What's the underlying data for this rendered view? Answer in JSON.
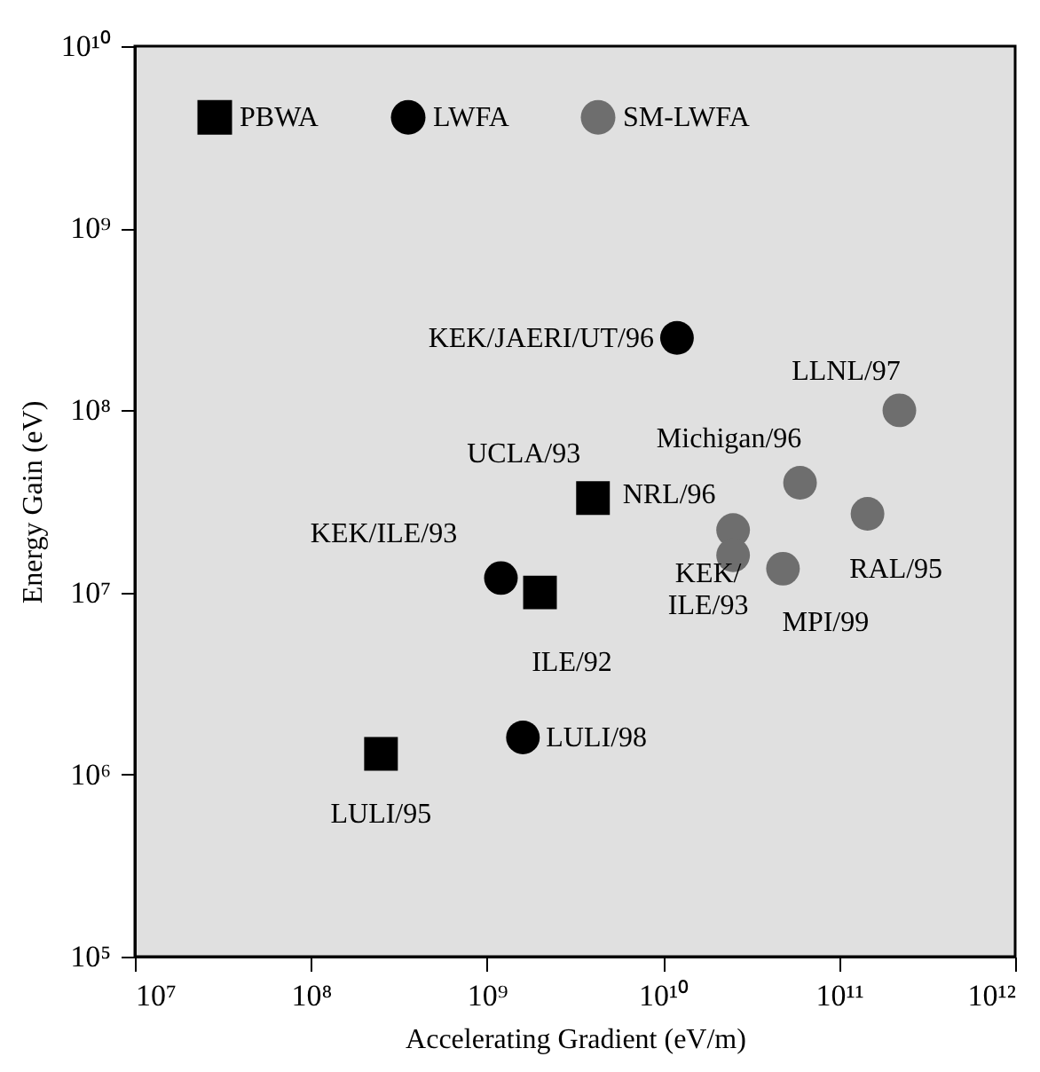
{
  "chart_data": {
    "type": "scatter",
    "xlabel": "Accelerating Gradient (eV/m)",
    "ylabel": "Energy Gain (eV)",
    "log": "xy",
    "grid": false,
    "legend": "top",
    "xlim": [
      10000000.0,
      1000000000000.0
    ],
    "ylim": [
      100000.0,
      10000000000.0
    ],
    "xticks": [
      {
        "value": 10000000.0,
        "label": "10⁷"
      },
      {
        "value": 100000000.0,
        "label": "10⁸"
      },
      {
        "value": 1000000000.0,
        "label": "10⁹"
      },
      {
        "value": 10000000000.0,
        "label": "10¹⁰"
      },
      {
        "value": 100000000000.0,
        "label": "10¹¹"
      },
      {
        "value": 1000000000000.0,
        "label": "10¹²"
      }
    ],
    "yticks": [
      {
        "value": 100000.0,
        "label": "10⁵"
      },
      {
        "value": 1000000.0,
        "label": "10⁶"
      },
      {
        "value": 10000000.0,
        "label": "10⁷"
      },
      {
        "value": 100000000.0,
        "label": "10⁸"
      },
      {
        "value": 1000000000.0,
        "label": "10⁹"
      },
      {
        "value": 10000000000.0,
        "label": "10¹⁰"
      }
    ],
    "series": [
      {
        "name": "PBWA",
        "color": "#000000",
        "marker": "square",
        "x": [
          250000000.0,
          2000000000.0,
          4000000000.0
        ],
        "values": [
          1300000.0,
          10000000.0,
          33000000.0
        ]
      },
      {
        "name": "LWFA",
        "color": "#000000",
        "marker": "circle",
        "x": [
          1200000000.0,
          1600000000.0,
          12000000000.0
        ],
        "values": [
          12000000.0,
          1600000.0,
          250000000.0
        ]
      },
      {
        "name": "SM-LWFA",
        "color": "#6e6e6e",
        "marker": "circle",
        "x": [
          220000000000.0,
          60000000000.0,
          145000000000.0,
          25000000000.0,
          25000000000.0,
          48000000000.0
        ],
        "values": [
          100000000.0,
          40000000.0,
          27000000.0,
          22000000.0,
          16000000.0,
          13500000.0
        ]
      }
    ],
    "annotations": [
      {
        "text": "LULI/95",
        "x": 250000000.0,
        "y": 1300000.0
      },
      {
        "text": "ILE/92",
        "x": 2000000000.0,
        "y": 10000000.0
      },
      {
        "text": "UCLA/93",
        "x": 4000000000.0,
        "y": 33000000.0
      },
      {
        "text": "KEK/ILE/93",
        "x": 1200000000.0,
        "y": 12000000.0
      },
      {
        "text": "LULI/98",
        "x": 1600000000.0,
        "y": 1600000.0
      },
      {
        "text": "KEK/JAERI/UT/96",
        "x": 12000000000.0,
        "y": 250000000.0
      },
      {
        "text": "LLNL/97",
        "x": 220000000000.0,
        "y": 100000000.0
      },
      {
        "text": "Michigan/96",
        "x": 60000000000.0,
        "y": 40000000.0
      },
      {
        "text": "NRL/96",
        "x": 25000000000.0,
        "y": 22000000.0
      },
      {
        "text": "KEK/\nILE/93",
        "x": 25000000000.0,
        "y": 16000000.0
      },
      {
        "text": "MPI/99",
        "x": 48000000000.0,
        "y": 13500000.0
      },
      {
        "text": "RAL/95",
        "x": 145000000000.0,
        "y": 27000000.0
      }
    ]
  }
}
